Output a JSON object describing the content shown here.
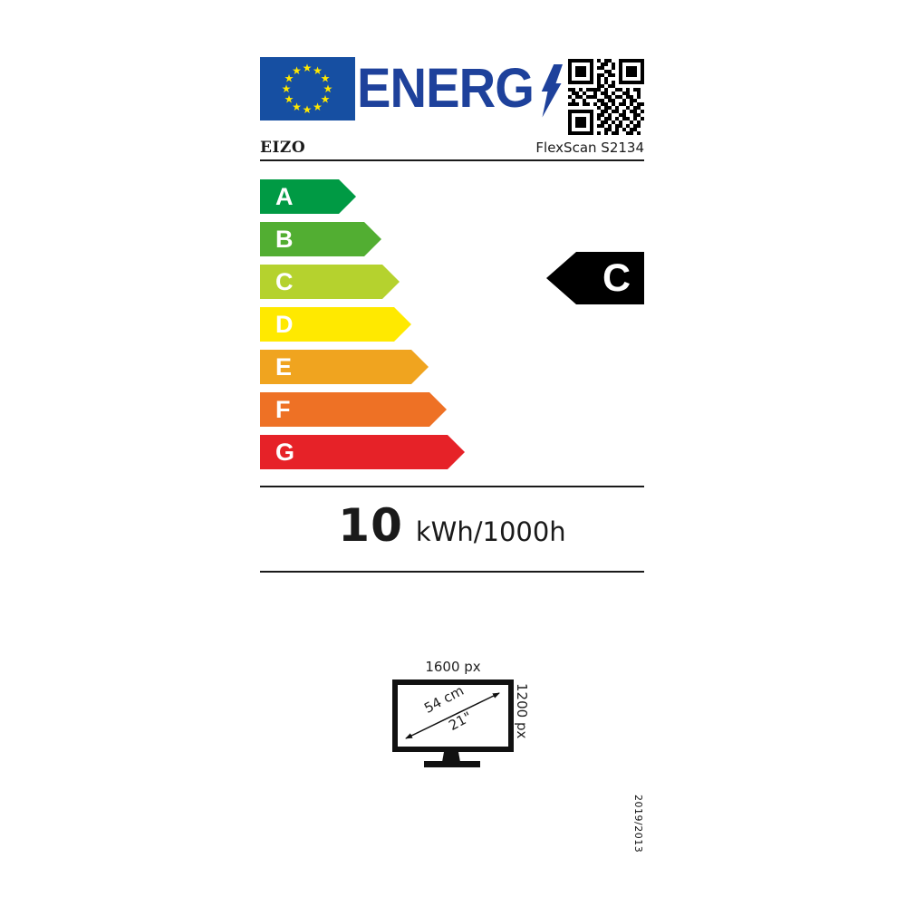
{
  "label": {
    "logo": {
      "text": "ENERG"
    },
    "product": {
      "brand": "EIZO",
      "model": "FlexScan S2134"
    },
    "scale": {
      "classes": [
        {
          "label": "A",
          "color": "#009a44"
        },
        {
          "label": "B",
          "color": "#52ae32"
        },
        {
          "label": "C",
          "color": "#b5d22e"
        },
        {
          "label": "D",
          "color": "#ffe900"
        },
        {
          "label": "E",
          "color": "#f0a41f"
        },
        {
          "label": "F",
          "color": "#ee7125"
        },
        {
          "label": "G",
          "color": "#e62228"
        }
      ]
    },
    "rating": {
      "class": "C",
      "background": "#000000",
      "text_color": "#ffffff"
    },
    "energy": {
      "value": "10",
      "unit": "kWh/1000h"
    },
    "screen": {
      "width": "1600 px",
      "height": "1200 px",
      "diagonal_cm": "54 cm",
      "diagonal_inch": "21\""
    },
    "regulation": "2019/2013",
    "colors": {
      "logo_blue": "#1e419b",
      "flag_blue": "#164fa2",
      "star_yellow": "#ffe800"
    }
  },
  "qr_matrix": [
    "111111101011001111111",
    "100000100110101000001",
    "101110101100101011101",
    "101110100011001011101",
    "101110101101101011101",
    "100000101010001000001",
    "111111101010101111111",
    "000000001101100000000",
    "110101111010011010110",
    "011010010110100110010",
    "101101110011011011010",
    "010010001101100101100",
    "111011010110101101011",
    "000000001011010010110",
    "111111100110110101101",
    "100000101101001100110",
    "101110101011010110101",
    "101110100110101001010",
    "101110101101011010110",
    "100000100011010101100",
    "111111101010110011010"
  ]
}
